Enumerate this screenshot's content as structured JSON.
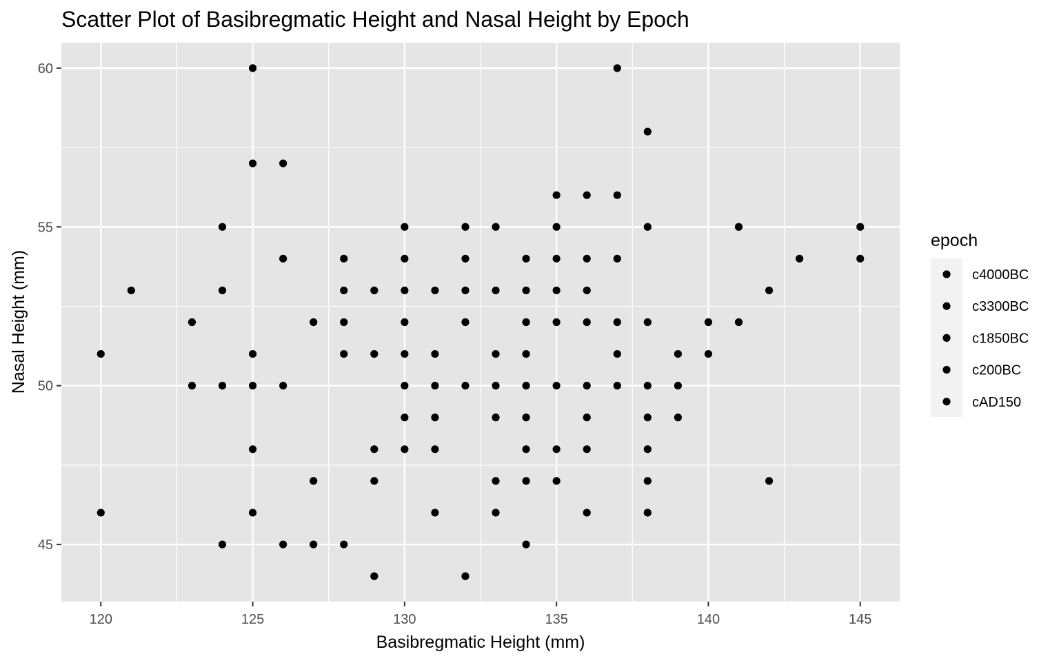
{
  "chart_data": {
    "type": "scatter",
    "title": "Scatter Plot of Basibregmatic Height and Nasal Height by Epoch",
    "xlabel": "Basibregmatic Height (mm)",
    "ylabel": "Nasal Height (mm)",
    "xlim": [
      118.7,
      146.3
    ],
    "ylim": [
      43.2,
      60.8
    ],
    "x_ticks": [
      120,
      125,
      130,
      135,
      140,
      145
    ],
    "y_ticks": [
      45,
      50,
      55,
      60
    ],
    "x_tick_labels": [
      "120",
      "125",
      "130",
      "135",
      "140",
      "145"
    ],
    "y_tick_labels": [
      "45",
      "50",
      "55",
      "60"
    ],
    "grid": true,
    "background": "#e5e5e5",
    "grid_color": "#ffffff",
    "point_color": "#000000",
    "legend": {
      "title": "epoch",
      "position": "right",
      "entries": [
        "c4000BC",
        "c3300BC",
        "c1850BC",
        "c200BC",
        "cAD150"
      ]
    },
    "points": [
      [
        120,
        51
      ],
      [
        120,
        46
      ],
      [
        121,
        53
      ],
      [
        123,
        52
      ],
      [
        123,
        50
      ],
      [
        124,
        55
      ],
      [
        124,
        53
      ],
      [
        124,
        50
      ],
      [
        124,
        45
      ],
      [
        125,
        60
      ],
      [
        125,
        57
      ],
      [
        125,
        51
      ],
      [
        125,
        50
      ],
      [
        125,
        48
      ],
      [
        125,
        46
      ],
      [
        126,
        57
      ],
      [
        126,
        54
      ],
      [
        126,
        50
      ],
      [
        126,
        45
      ],
      [
        127,
        52
      ],
      [
        127,
        47
      ],
      [
        127,
        45
      ],
      [
        128,
        54
      ],
      [
        128,
        53
      ],
      [
        128,
        52
      ],
      [
        128,
        51
      ],
      [
        128,
        45
      ],
      [
        129,
        53
      ],
      [
        129,
        51
      ],
      [
        129,
        48
      ],
      [
        129,
        47
      ],
      [
        129,
        44
      ],
      [
        130,
        55
      ],
      [
        130,
        54
      ],
      [
        130,
        53
      ],
      [
        130,
        52
      ],
      [
        130,
        51
      ],
      [
        130,
        50
      ],
      [
        130,
        49
      ],
      [
        130,
        48
      ],
      [
        131,
        53
      ],
      [
        131,
        51
      ],
      [
        131,
        50
      ],
      [
        131,
        49
      ],
      [
        131,
        48
      ],
      [
        131,
        46
      ],
      [
        132,
        55
      ],
      [
        132,
        54
      ],
      [
        132,
        53
      ],
      [
        132,
        52
      ],
      [
        132,
        50
      ],
      [
        132,
        44
      ],
      [
        133,
        55
      ],
      [
        133,
        53
      ],
      [
        133,
        51
      ],
      [
        133,
        50
      ],
      [
        133,
        49
      ],
      [
        133,
        47
      ],
      [
        133,
        46
      ],
      [
        134,
        54
      ],
      [
        134,
        53
      ],
      [
        134,
        52
      ],
      [
        134,
        51
      ],
      [
        134,
        50
      ],
      [
        134,
        49
      ],
      [
        134,
        48
      ],
      [
        134,
        47
      ],
      [
        134,
        45
      ],
      [
        135,
        56
      ],
      [
        135,
        55
      ],
      [
        135,
        54
      ],
      [
        135,
        53
      ],
      [
        135,
        52
      ],
      [
        135,
        50
      ],
      [
        135,
        48
      ],
      [
        135,
        47
      ],
      [
        136,
        56
      ],
      [
        136,
        54
      ],
      [
        136,
        53
      ],
      [
        136,
        52
      ],
      [
        136,
        50
      ],
      [
        136,
        49
      ],
      [
        136,
        48
      ],
      [
        136,
        46
      ],
      [
        137,
        60
      ],
      [
        137,
        56
      ],
      [
        137,
        54
      ],
      [
        137,
        52
      ],
      [
        137,
        51
      ],
      [
        137,
        50
      ],
      [
        138,
        58
      ],
      [
        138,
        55
      ],
      [
        138,
        52
      ],
      [
        138,
        50
      ],
      [
        138,
        49
      ],
      [
        138,
        48
      ],
      [
        138,
        47
      ],
      [
        138,
        46
      ],
      [
        139,
        51
      ],
      [
        139,
        50
      ],
      [
        139,
        49
      ],
      [
        140,
        52
      ],
      [
        140,
        51
      ],
      [
        141,
        55
      ],
      [
        141,
        52
      ],
      [
        142,
        53
      ],
      [
        142,
        47
      ],
      [
        143,
        54
      ],
      [
        145,
        55
      ],
      [
        145,
        54
      ]
    ]
  }
}
